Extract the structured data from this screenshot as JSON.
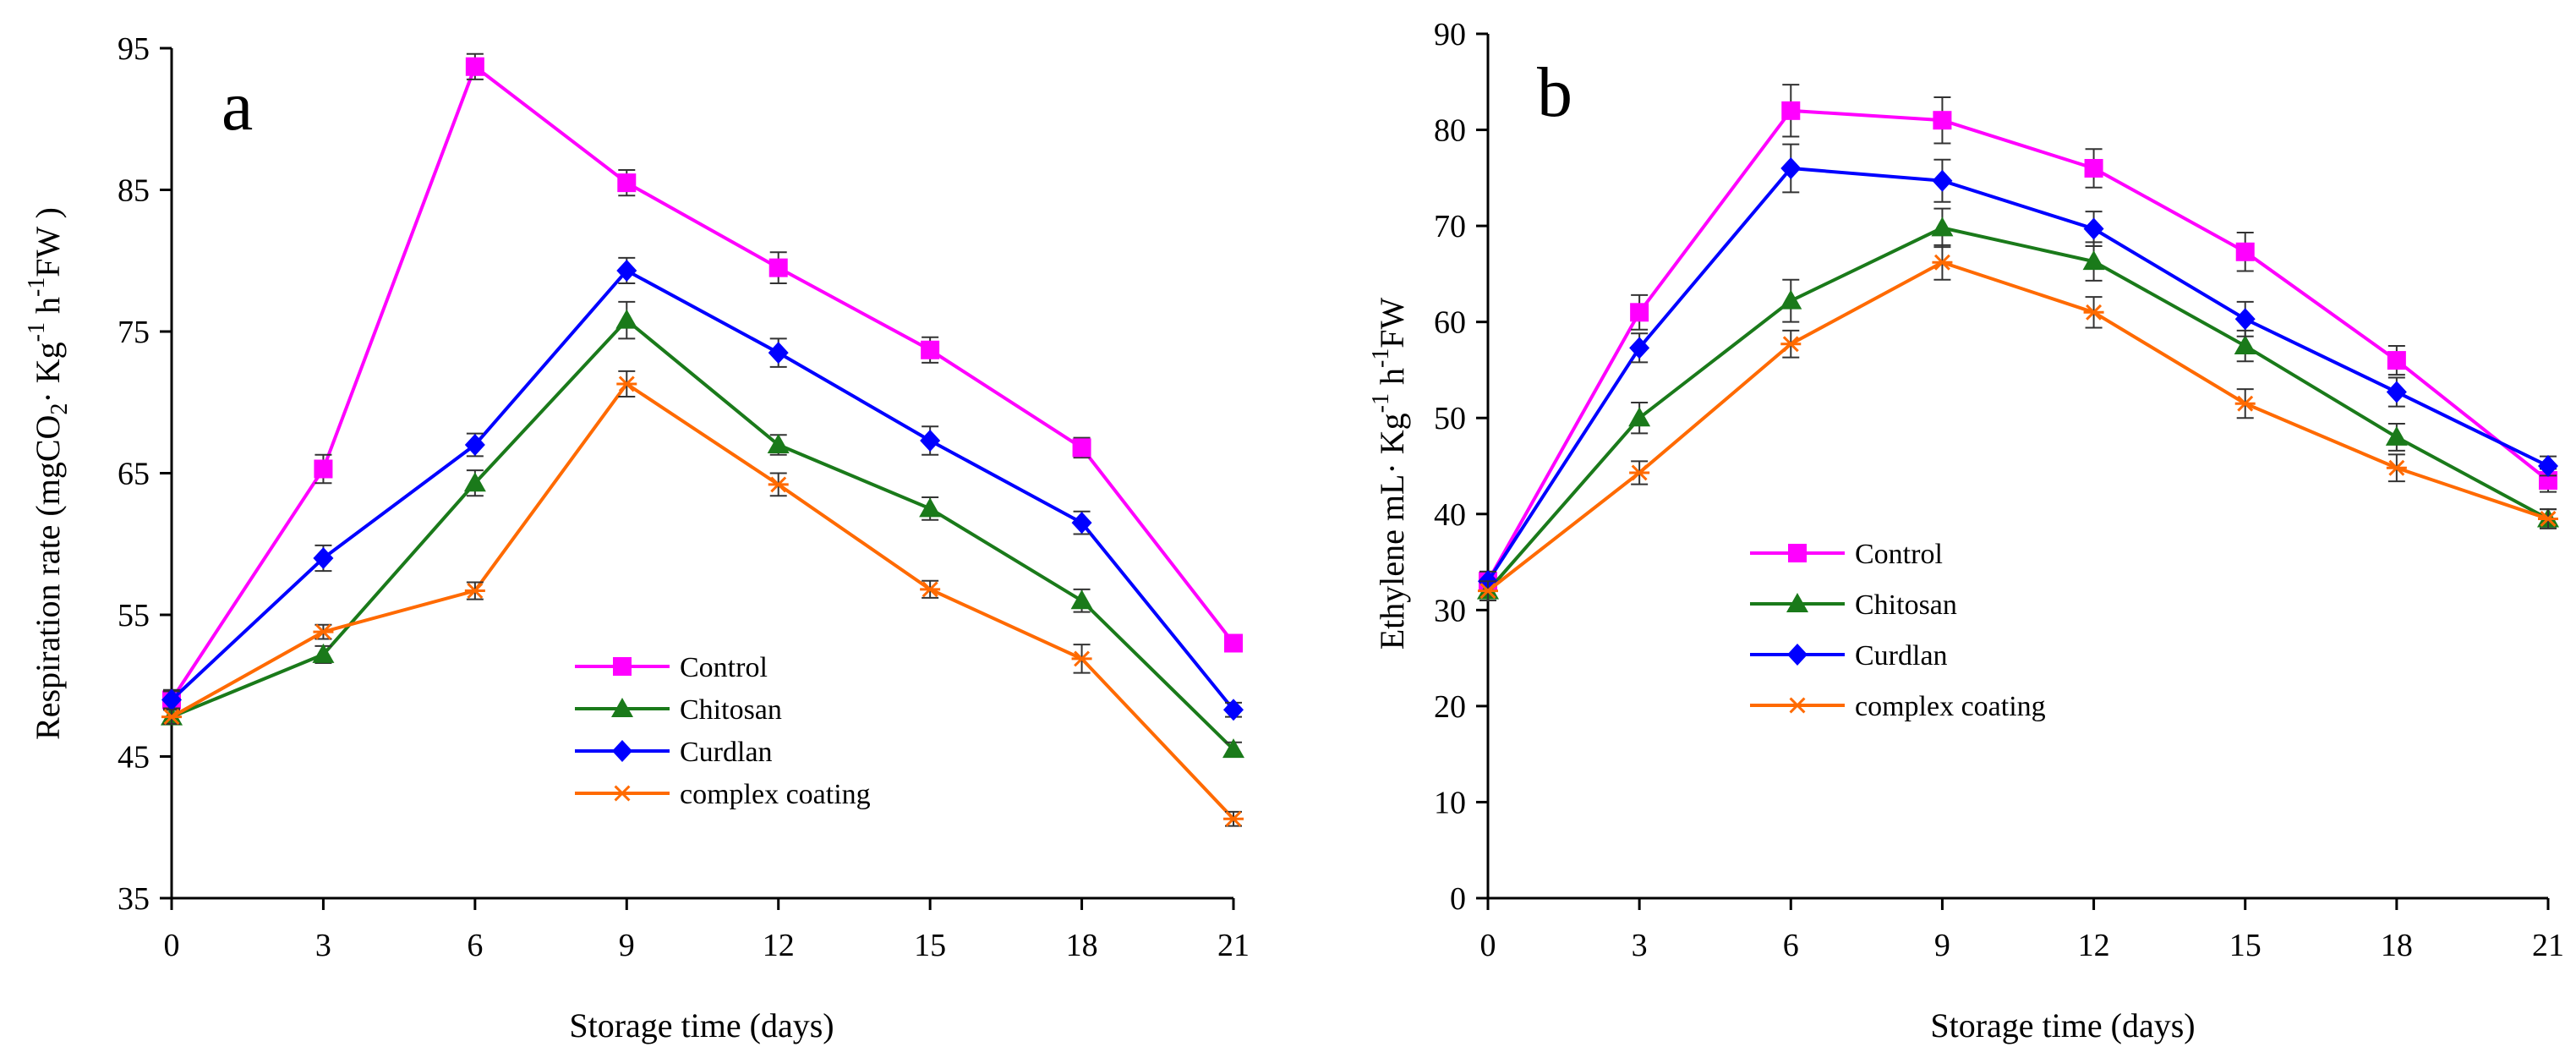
{
  "chart_data": [
    {
      "type": "line",
      "panel_label": "a",
      "xlabel": "Storage time (days)",
      "ylabel_parts": {
        "prefix": "Respiration rate (mgCO",
        "sub": "2",
        "middle": "· Kg",
        "sup1": "-1",
        "mid2": " h",
        "sup2": "-1",
        "suffix": "FW )"
      },
      "x": [
        0,
        3,
        6,
        9,
        12,
        15,
        18,
        21
      ],
      "x_ticks": [
        "0",
        "3",
        "6",
        "9",
        "12",
        "15",
        "18",
        "21"
      ],
      "y_ticks": [
        "35",
        "45",
        "55",
        "65",
        "75",
        "85",
        "95"
      ],
      "ylim": [
        35,
        95
      ],
      "legend_position": "lower-center",
      "series": [
        {
          "name": "Control",
          "color": "#ff00ff",
          "marker": "square",
          "values": [
            49.0,
            65.3,
            93.7,
            85.5,
            79.5,
            73.7,
            66.8,
            53.0
          ],
          "errors": [
            0.7,
            1.0,
            0.9,
            0.9,
            1.1,
            0.9,
            0.7,
            0.6
          ]
        },
        {
          "name": "Chitosan",
          "color": "#1a7a1a",
          "marker": "triangle",
          "values": [
            47.8,
            52.2,
            64.3,
            75.8,
            67.0,
            62.5,
            56.0,
            45.5
          ],
          "errors": [
            0.5,
            0.6,
            0.9,
            1.3,
            0.7,
            0.8,
            0.8,
            0.5
          ]
        },
        {
          "name": "Curdlan",
          "color": "#0000ff",
          "marker": "diamond",
          "values": [
            49.0,
            59.0,
            67.0,
            79.3,
            73.5,
            67.3,
            61.5,
            48.3
          ],
          "errors": [
            0.6,
            0.9,
            0.8,
            0.9,
            1.0,
            1.0,
            0.8,
            0.5
          ]
        },
        {
          "name": "complex coating",
          "color": "#ff6a00",
          "marker": "asterisk",
          "values": [
            47.8,
            53.8,
            56.7,
            71.3,
            64.2,
            56.8,
            51.9,
            40.6
          ],
          "errors": [
            0.5,
            0.5,
            0.6,
            0.9,
            0.8,
            0.6,
            1.0,
            0.5
          ]
        }
      ]
    },
    {
      "type": "line",
      "panel_label": "b",
      "xlabel": "Storage time (days)",
      "ylabel_parts": {
        "prefix": "Ethylene  mL· Kg",
        "sup1": "-1",
        "mid2": " h",
        "sup2": "-1",
        "suffix": "FW"
      },
      "x": [
        0,
        3,
        6,
        9,
        12,
        15,
        18,
        21
      ],
      "x_ticks": [
        "0",
        "3",
        "6",
        "9",
        "12",
        "15",
        "18",
        "21"
      ],
      "y_ticks": [
        "0",
        "10",
        "20",
        "30",
        "40",
        "50",
        "60",
        "70",
        "80",
        "90"
      ],
      "ylim": [
        0,
        90
      ],
      "legend_position": "middle-left",
      "series": [
        {
          "name": "Control",
          "color": "#ff00ff",
          "marker": "square",
          "values": [
            33.0,
            61.0,
            82.0,
            81.0,
            76.0,
            67.3,
            56.0,
            43.5
          ],
          "errors": [
            1.0,
            1.8,
            2.7,
            2.4,
            2.0,
            2.0,
            1.5,
            1.2
          ]
        },
        {
          "name": "Chitosan",
          "color": "#1a7a1a",
          "marker": "triangle",
          "values": [
            32.0,
            50.0,
            62.2,
            69.8,
            66.3,
            57.5,
            48.0,
            39.5
          ],
          "errors": [
            1.0,
            1.6,
            2.2,
            2.0,
            2.0,
            1.6,
            1.4,
            1.0
          ]
        },
        {
          "name": "Curdlan",
          "color": "#0000ff",
          "marker": "diamond",
          "values": [
            33.0,
            57.3,
            76.0,
            74.7,
            69.7,
            60.3,
            52.7,
            45.0
          ],
          "errors": [
            1.0,
            1.5,
            2.5,
            2.2,
            1.8,
            1.8,
            1.5,
            1.0
          ]
        },
        {
          "name": "complex coating",
          "color": "#ff6a00",
          "marker": "asterisk",
          "values": [
            32.0,
            44.3,
            57.7,
            66.2,
            61.0,
            51.5,
            44.8,
            39.5
          ],
          "errors": [
            1.0,
            1.2,
            1.4,
            1.8,
            1.6,
            1.5,
            1.4,
            1.0
          ]
        }
      ]
    }
  ]
}
